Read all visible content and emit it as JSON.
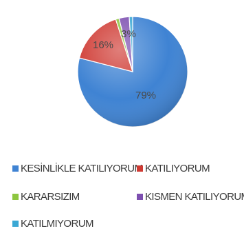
{
  "chart_data": {
    "type": "pie",
    "title": "",
    "slices": [
      {
        "name": "KESİNLİKLE KATILIYORUM",
        "value": 79,
        "label": "79%",
        "color": "#3f83d3"
      },
      {
        "name": "KATILIYORUM",
        "value": 16,
        "label": "16%",
        "color": "#cf3a33"
      },
      {
        "name": "KARARSIZIM",
        "value": 1,
        "label": "",
        "color": "#8dc63f"
      },
      {
        "name": "KISMEN KATILIYORUM",
        "value": 3,
        "label": "3%",
        "color": "#7d4fb0"
      },
      {
        "name": "KATILMIYORUM",
        "value": 1,
        "label": "",
        "color": "#3aa8d4"
      }
    ],
    "legend_position": "bottom",
    "start_angle_deg": 0,
    "direction": "clockwise"
  }
}
